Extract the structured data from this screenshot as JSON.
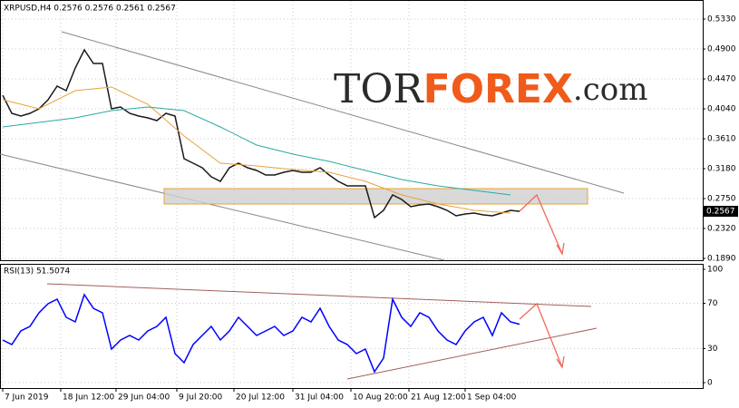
{
  "logo": [
    "TOR",
    "FOREX",
    ".com"
  ],
  "chart_data": [
    {
      "type": "line",
      "title": "XRPUSD,H4  0.2576 0.2576 0.2561 0.2567",
      "current_price_label": "0.2567",
      "xlim": [
        -0.3,
        77.2
      ],
      "ylim": [
        0.1864,
        0.5604
      ],
      "yticks": [
        {
          "value": 0.533,
          "label": "0.5330"
        },
        {
          "value": 0.49,
          "label": "0.4900"
        },
        {
          "value": 0.447,
          "label": "0.4470"
        },
        {
          "value": 0.404,
          "label": "0.4040"
        },
        {
          "value": 0.361,
          "label": "0.3610"
        },
        {
          "value": 0.318,
          "label": "0.3180"
        },
        {
          "value": 0.275,
          "label": "0.2750"
        },
        {
          "value": 0.232,
          "label": "0.2320"
        },
        {
          "value": 0.189,
          "label": "0.1890"
        }
      ],
      "grid": true,
      "series": [
        {
          "color": "#1a1a1a",
          "values": [
            0.4235,
            0.3975,
            0.3936,
            0.3975,
            0.404,
            0.417,
            0.4366,
            0.4301,
            0.4626,
            0.4887,
            0.4692,
            0.4692,
            0.404,
            0.4066,
            0.3975,
            0.3936,
            0.391,
            0.3871,
            0.3975,
            0.3936,
            0.3323,
            0.3258,
            0.3193,
            0.3063,
            0.2998,
            0.3193,
            0.3258,
            0.3193,
            0.3154,
            0.3089,
            0.3089,
            0.3128,
            0.3154,
            0.3128,
            0.3128,
            0.3193,
            0.3089,
            0.2998,
            0.2932,
            0.2932,
            0.2932,
            0.2476,
            0.2581,
            0.2802,
            0.2737,
            0.2633,
            0.2659,
            0.2672,
            0.2633,
            0.2581,
            0.2502,
            0.2528,
            0.2541,
            0.2515,
            0.2502,
            0.2541,
            0.2581,
            0.2567
          ]
        },
        {
          "color": "#e8a33c",
          "x": [
            0,
            4,
            8,
            12,
            16,
            20,
            24,
            28,
            32,
            36,
            40,
            44,
            48,
            52,
            56
          ],
          "values": [
            0.417,
            0.404,
            0.4301,
            0.4353,
            0.4105,
            0.3649,
            0.3258,
            0.3219,
            0.3167,
            0.3128,
            0.2998,
            0.2802,
            0.2672,
            0.2581,
            0.2541
          ]
        },
        {
          "color": "#2aa9a4",
          "x": [
            0,
            4,
            8,
            12,
            16,
            20,
            24,
            28,
            32,
            36,
            40,
            44,
            48,
            52,
            56
          ],
          "values": [
            0.3779,
            0.3845,
            0.391,
            0.4014,
            0.4066,
            0.4014,
            0.3779,
            0.3519,
            0.3389,
            0.3284,
            0.3154,
            0.3024,
            0.2932,
            0.2867,
            0.2802
          ]
        }
      ]
    },
    {
      "type": "line",
      "title": "RSI(13) 51.5074",
      "xlim": [
        -0.3,
        77.2
      ],
      "ylim": [
        -4.8,
        104.8
      ],
      "yticks": [
        0,
        30,
        70,
        100
      ],
      "xticks": [
        {
          "value": 0,
          "label": "7 Jun 2019"
        },
        {
          "value": 6.4,
          "label": "18 Jun 12:00"
        },
        {
          "value": 12.5,
          "label": "29 Jun 04:00"
        },
        {
          "value": 19.2,
          "label": "9 Jul 20:00"
        },
        {
          "value": 25.5,
          "label": "20 Jul 12:00"
        },
        {
          "value": 32,
          "label": "31 Jul 04:00"
        },
        {
          "value": 38.4,
          "label": "10 Aug 20:00"
        },
        {
          "value": 44.8,
          "label": "21 Aug 12:00"
        },
        {
          "value": 51,
          "label": "1 Sep 04:00"
        }
      ],
      "grid": true,
      "series": [
        {
          "color": "#0000ff",
          "values": [
            37.6,
            33.6,
            45.6,
            49.6,
            61.6,
            69.6,
            73.6,
            57.6,
            53.6,
            77.6,
            65.6,
            61.6,
            29.6,
            37.6,
            41.6,
            37.6,
            45.6,
            49.6,
            57.6,
            25.6,
            17.6,
            33.6,
            41.6,
            49.6,
            37.6,
            45.6,
            57.6,
            49.6,
            41.6,
            45.6,
            49.6,
            41.6,
            45.6,
            57.6,
            53.6,
            65.6,
            49.6,
            37.6,
            33.6,
            25.6,
            29.6,
            9.6,
            21.6,
            73.6,
            57.6,
            49.6,
            61.6,
            57.6,
            45.6,
            37.6,
            33.6,
            45.6,
            53.6,
            57.6,
            41.6,
            61.6,
            53.6,
            51.5
          ]
        }
      ]
    }
  ]
}
